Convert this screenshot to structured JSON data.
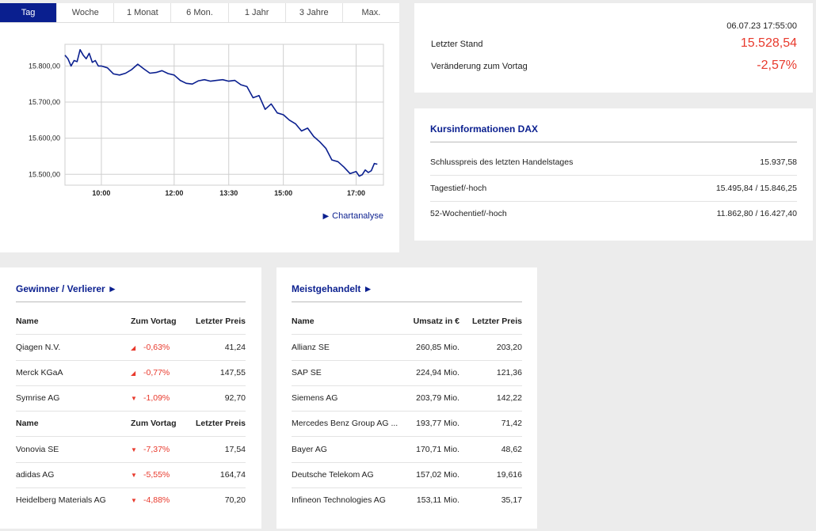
{
  "tabs": [
    "Tag",
    "Woche",
    "1 Monat",
    "6 Mon.",
    "1 Jahr",
    "3 Jahre",
    "Max."
  ],
  "active_tab": "Tag",
  "chart_link": "Chartanalyse",
  "chart_data": {
    "type": "line",
    "title": "",
    "xlabel": "",
    "ylabel": "",
    "x_ticks": [
      "10:00",
      "12:00",
      "13:30",
      "15:00",
      "17:00"
    ],
    "y_ticks": [
      "15.500,00",
      "15.600,00",
      "15.700,00",
      "15.800,00"
    ],
    "ylim": [
      15470,
      15860
    ],
    "xlim": [
      "09:00",
      "17:45"
    ],
    "grid": true,
    "series": [
      {
        "color": "#0a1f8f",
        "x": [
          "09:00",
          "09:05",
          "09:10",
          "09:15",
          "09:20",
          "09:25",
          "09:30",
          "09:35",
          "09:40",
          "09:45",
          "09:50",
          "09:55",
          "10:00",
          "10:10",
          "10:20",
          "10:30",
          "10:40",
          "10:50",
          "11:00",
          "11:10",
          "11:20",
          "11:30",
          "11:40",
          "11:50",
          "12:00",
          "12:10",
          "12:20",
          "12:30",
          "12:40",
          "12:50",
          "13:00",
          "13:10",
          "13:20",
          "13:30",
          "13:40",
          "13:50",
          "14:00",
          "14:10",
          "14:20",
          "14:30",
          "14:40",
          "14:50",
          "15:00",
          "15:10",
          "15:20",
          "15:30",
          "15:40",
          "15:50",
          "16:00",
          "16:10",
          "16:20",
          "16:30",
          "16:40",
          "16:50",
          "17:00",
          "17:05",
          "17:10",
          "17:15",
          "17:20",
          "17:25",
          "17:30",
          "17:35"
        ],
        "values": [
          15830,
          15820,
          15800,
          15815,
          15812,
          15845,
          15830,
          15820,
          15835,
          15810,
          15815,
          15800,
          15800,
          15795,
          15778,
          15775,
          15780,
          15790,
          15805,
          15792,
          15780,
          15782,
          15787,
          15779,
          15775,
          15760,
          15752,
          15750,
          15759,
          15762,
          15758,
          15760,
          15762,
          15758,
          15760,
          15748,
          15743,
          15712,
          15718,
          15680,
          15695,
          15670,
          15665,
          15650,
          15640,
          15620,
          15628,
          15605,
          15590,
          15572,
          15540,
          15535,
          15520,
          15502,
          15508,
          15495,
          15499,
          15512,
          15505,
          15510,
          15530,
          15528
        ]
      }
    ]
  },
  "quote": {
    "datetime": "06.07.23 17:55:00",
    "last_label": "Letzter Stand",
    "last_value": "15.528,54",
    "change_label": "Veränderung zum Vortag",
    "change_value": "-2,57%",
    "value_color": "#e8392c"
  },
  "kurs": {
    "title": "Kursinformationen DAX",
    "rows": [
      {
        "label": "Schlusspreis des letzten Handelstages",
        "value": "15.937,58"
      },
      {
        "label": "Tagestief/-hoch",
        "value": "15.495,84 / 15.846,25"
      },
      {
        "label": "52-Wochentief/-hoch",
        "value": "11.862,80 / 16.427,40"
      }
    ]
  },
  "gv": {
    "title": "Gewinner / Verlierer ►",
    "header": {
      "name": "Name",
      "change": "Zum Vortag",
      "price": "Letzter Preis"
    },
    "gainers": [
      {
        "name": "Qiagen N.V.",
        "arrow": "◢",
        "change": "-0,63%",
        "price": "41,24"
      },
      {
        "name": "Merck KGaA",
        "arrow": "◢",
        "change": "-0,77%",
        "price": "147,55"
      },
      {
        "name": "Symrise AG",
        "arrow": "▼",
        "change": "-1,09%",
        "price": "92,70"
      }
    ],
    "losers": [
      {
        "name": "Vonovia SE",
        "arrow": "▼",
        "change": "-7,37%",
        "price": "17,54"
      },
      {
        "name": "adidas AG",
        "arrow": "▼",
        "change": "-5,55%",
        "price": "164,74"
      },
      {
        "name": "Heidelberg Materials AG",
        "arrow": "▼",
        "change": "-4,88%",
        "price": "70,20"
      }
    ]
  },
  "mg": {
    "title": "Meistgehandelt ►",
    "header": {
      "name": "Name",
      "volume": "Umsatz in €",
      "price": "Letzter Preis"
    },
    "rows": [
      {
        "name": "Allianz SE",
        "volume": "260,85 Mio.",
        "price": "203,20"
      },
      {
        "name": "SAP SE",
        "volume": "224,94 Mio.",
        "price": "121,36"
      },
      {
        "name": "Siemens AG",
        "volume": "203,79 Mio.",
        "price": "142,22"
      },
      {
        "name": "Mercedes Benz Group AG ...",
        "volume": "193,77 Mio.",
        "price": "71,42"
      },
      {
        "name": "Bayer AG",
        "volume": "170,71 Mio.",
        "price": "48,62"
      },
      {
        "name": "Deutsche Telekom AG",
        "volume": "157,02 Mio.",
        "price": "19,616"
      },
      {
        "name": "Infineon Technologies AG",
        "volume": "153,11 Mio.",
        "price": "35,17"
      }
    ]
  }
}
